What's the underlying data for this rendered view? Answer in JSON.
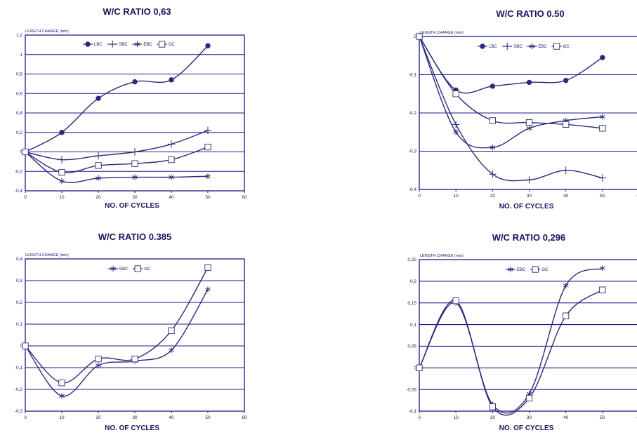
{
  "chart_data": [
    {
      "type": "line",
      "title": "W/C RATIO 0,63",
      "xlabel": "NO. OF CYCLES",
      "ylabel": "LENGTH CHANGE (mm)",
      "xlim": [
        0,
        60
      ],
      "ylim": [
        -0.4,
        1.2
      ],
      "x_ticks": [
        "0",
        "10",
        "20",
        "30",
        "40",
        "50",
        "60"
      ],
      "y_ticks": [
        "1,2",
        "1",
        "0,8",
        "0,6",
        "0,4",
        "0,2",
        "0",
        "-0,2",
        "-0,4"
      ],
      "grid": "horizontal",
      "legend_position": "top",
      "series": [
        {
          "name": "LBC",
          "marker": "circle",
          "x": [
            0,
            10,
            20,
            30,
            40,
            50
          ],
          "y": [
            0,
            0.2,
            0.55,
            0.72,
            0.74,
            1.09
          ]
        },
        {
          "name": "SBC",
          "marker": "plus",
          "x": [
            0,
            10,
            20,
            30,
            40,
            50
          ],
          "y": [
            0,
            -0.08,
            -0.04,
            0,
            0.08,
            0.22
          ]
        },
        {
          "name": "EBC",
          "marker": "star",
          "x": [
            0,
            10,
            20,
            30,
            40,
            50
          ],
          "y": [
            0,
            -0.3,
            -0.27,
            -0.26,
            -0.26,
            -0.25
          ]
        },
        {
          "name": "GC",
          "marker": "square",
          "x": [
            0,
            10,
            20,
            30,
            40,
            50
          ],
          "y": [
            0,
            -0.21,
            -0.14,
            -0.12,
            -0.08,
            0.05
          ]
        }
      ]
    },
    {
      "type": "line",
      "title": "W/C RATIO 0.50",
      "xlabel": "NO. OF CYCLES",
      "ylabel": "LENGTH CHANGE (mm)",
      "xlim": [
        0,
        60
      ],
      "ylim": [
        -0.4,
        0
      ],
      "x_ticks": [
        "0",
        "10",
        "20",
        "30",
        "40",
        "50",
        "60"
      ],
      "y_ticks": [
        "0",
        "-0.1",
        "-0.2",
        "-0.3",
        "-0.4"
      ],
      "grid": "horizontal",
      "legend_position": "top",
      "series": [
        {
          "name": "LBC",
          "marker": "circle",
          "x": [
            0,
            10,
            20,
            30,
            40,
            50
          ],
          "y": [
            0,
            -0.14,
            -0.13,
            -0.12,
            -0.115,
            -0.055
          ]
        },
        {
          "name": "SBC",
          "marker": "plus",
          "x": [
            0,
            10,
            20,
            30,
            40,
            50
          ],
          "y": [
            0,
            -0.23,
            -0.36,
            -0.375,
            -0.35,
            -0.37
          ]
        },
        {
          "name": "EBC",
          "marker": "star",
          "x": [
            0,
            10,
            20,
            30,
            40,
            50
          ],
          "y": [
            0,
            -0.25,
            -0.29,
            -0.24,
            -0.22,
            -0.21
          ]
        },
        {
          "name": "GC",
          "marker": "square",
          "x": [
            0,
            10,
            20,
            30,
            40,
            50
          ],
          "y": [
            0,
            -0.15,
            -0.22,
            -0.225,
            -0.23,
            -0.24
          ]
        }
      ]
    },
    {
      "type": "line",
      "title": "W/C RATIO 0.385",
      "xlabel": "NO. OF CYCLES",
      "ylabel": "LENGTH CHANGE (mm)",
      "xlim": [
        0,
        60
      ],
      "ylim": [
        -0.3,
        0.4
      ],
      "x_ticks": [
        "0",
        "10",
        "20",
        "30",
        "40",
        "50",
        "60"
      ],
      "y_ticks": [
        "0,4",
        "0,3",
        "0,2",
        "0,1",
        "0",
        "-0,1",
        "-0,2",
        "-0,3"
      ],
      "grid": "horizontal",
      "legend_position": "top",
      "series": [
        {
          "name": "EBC",
          "marker": "star",
          "x": [
            0,
            10,
            20,
            30,
            40,
            50
          ],
          "y": [
            0,
            -0.23,
            -0.09,
            -0.07,
            -0.02,
            0.26
          ]
        },
        {
          "name": "GC",
          "marker": "square",
          "x": [
            0,
            10,
            20,
            30,
            40,
            50
          ],
          "y": [
            0,
            -0.17,
            -0.06,
            -0.06,
            0.07,
            0.36
          ]
        }
      ]
    },
    {
      "type": "line",
      "title": "W/C RATIO 0,296",
      "xlabel": "NO. OF CYCLES",
      "ylabel": "LENGTH CHANGE (mm)",
      "xlim": [
        0,
        60
      ],
      "ylim": [
        -0.1,
        0.25
      ],
      "x_ticks": [
        "0",
        "10",
        "20",
        "30",
        "40",
        "50",
        "60"
      ],
      "y_ticks": [
        "0,25",
        "0,2",
        "0,15",
        "0,1",
        "0,05",
        "0",
        "-0,05",
        "-0,1"
      ],
      "grid": "horizontal",
      "legend_position": "top",
      "series": [
        {
          "name": "EBC",
          "marker": "star",
          "x": [
            0,
            10,
            20,
            30,
            40,
            50
          ],
          "y": [
            0,
            0.15,
            -0.085,
            -0.06,
            0.19,
            0.23
          ]
        },
        {
          "name": "GC",
          "marker": "square",
          "x": [
            0,
            10,
            20,
            30,
            40,
            50
          ],
          "y": [
            0,
            0.155,
            -0.09,
            -0.07,
            0.12,
            0.18
          ]
        }
      ]
    }
  ],
  "colors": {
    "axis": "#1a1a8c",
    "text": "#151560",
    "series": "#2a2a7a"
  }
}
